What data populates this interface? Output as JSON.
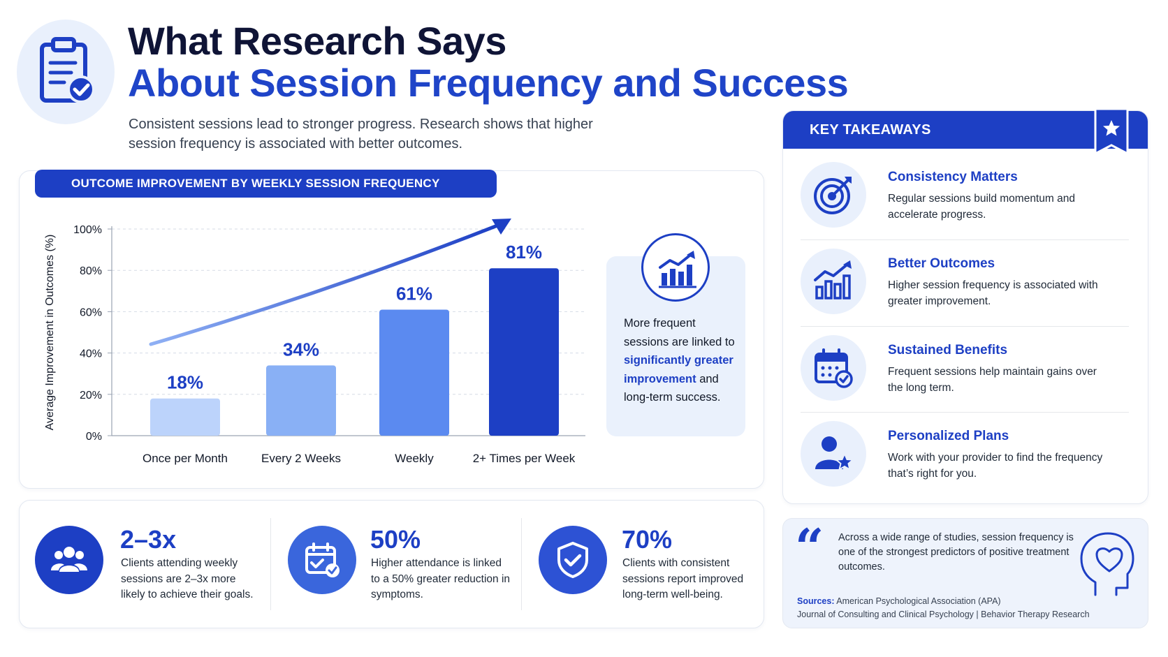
{
  "header": {
    "title_line1": "What Research Says",
    "title_line2": "About Session Frequency and Success",
    "subtitle": "Consistent sessions lead to stronger progress. Research shows that higher session frequency is associated with better outcomes."
  },
  "chart_panel": {
    "banner": "OUTCOME IMPROVEMENT BY WEEKLY SESSION FREQUENCY"
  },
  "chart_data": {
    "type": "bar",
    "title": "OUTCOME IMPROVEMENT BY WEEKLY SESSION FREQUENCY",
    "categories": [
      "Once per Month",
      "Every 2 Weeks",
      "Weekly",
      "2+ Times per Week"
    ],
    "values": [
      18,
      34,
      61,
      81
    ],
    "data_labels": [
      "18%",
      "34%",
      "61%",
      "81%"
    ],
    "bar_colors": [
      "#bcd3fb",
      "#89b0f5",
      "#5b8af0",
      "#1d3fc4"
    ],
    "ylabel": "Average Improvement in Outcomes (%)",
    "xlabel": "",
    "ylim": [
      0,
      100
    ],
    "yticks": [
      0,
      20,
      40,
      60,
      80,
      100
    ],
    "ytick_labels": [
      "0%",
      "20%",
      "40%",
      "60%",
      "80%",
      "100%"
    ],
    "grid": true,
    "trend_arrow": true
  },
  "insight": {
    "text_before": "More frequent sessions are linked to ",
    "highlight": "significantly greater improvement",
    "text_after": " and long-term success.",
    "icon": "growth-chart-icon"
  },
  "stats": [
    {
      "value": "2–3x",
      "desc": "Clients attending weekly sessions are 2–3x more likely to achieve their goals.",
      "icon": "group-icon"
    },
    {
      "value": "50%",
      "desc": "Higher attendance is linked to a 50% greater reduction in symptoms.",
      "icon": "calendar-check-icon"
    },
    {
      "value": "70%",
      "desc": "Clients with consistent sessions report improved long-term well-being.",
      "icon": "shield-check-icon"
    }
  ],
  "takeaways": {
    "title": "KEY TAKEAWAYS",
    "items": [
      {
        "title": "Consistency Matters",
        "desc": "Regular sessions build momentum and accelerate progress.",
        "icon": "target-icon"
      },
      {
        "title": "Better Outcomes",
        "desc": "Higher session frequency is associated with greater improvement.",
        "icon": "bar-growth-icon"
      },
      {
        "title": "Sustained Benefits",
        "desc": "Frequent sessions help maintain gains over the long term.",
        "icon": "calendar-icon"
      },
      {
        "title": "Personalized Plans",
        "desc": "Work with your provider to find the frequency that’s right for you.",
        "icon": "person-star-icon"
      }
    ]
  },
  "quote": {
    "text": "Across a wide range of studies, session frequency is one of the strongest predictors of positive treatment outcomes.",
    "sources_label": "Sources:",
    "sources_line1": "American Psychological Association (APA)",
    "sources_line2": "Journal of Consulting and Clinical Psychology | Behavior Therapy Research"
  },
  "colors": {
    "primary": "#1d3fc4",
    "dark_title": "#0f1436",
    "light_bg": "#e9f0fc"
  }
}
